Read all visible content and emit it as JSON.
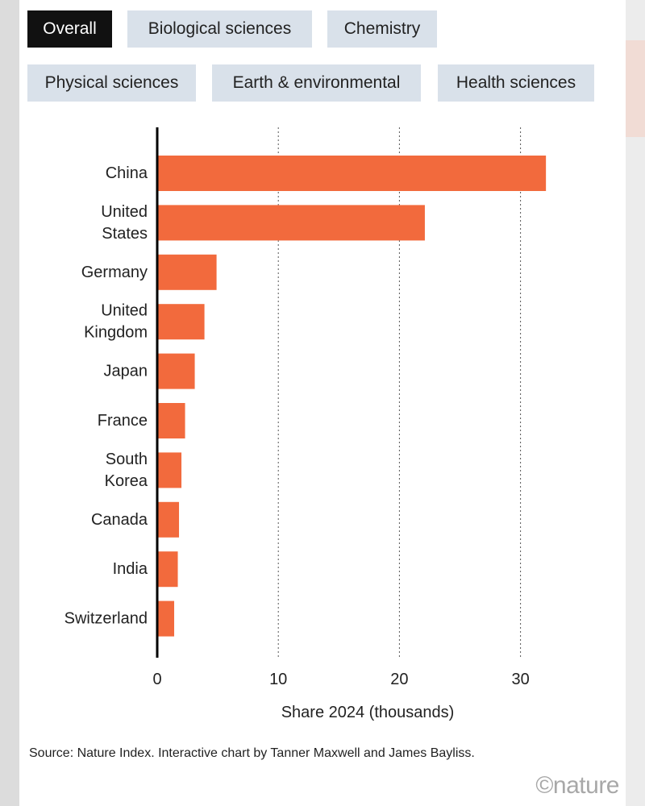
{
  "tabs": [
    {
      "label": "Overall",
      "active": true
    },
    {
      "label": "Biological sciences",
      "active": false
    },
    {
      "label": "Chemistry",
      "active": false
    },
    {
      "label": "Physical sciences",
      "active": false
    },
    {
      "label": "Earth & environmental",
      "active": false
    },
    {
      "label": "Health sciences",
      "active": false
    }
  ],
  "chart_data": {
    "type": "bar",
    "orientation": "horizontal",
    "categories": [
      "China",
      "United States",
      "Germany",
      "United Kingdom",
      "Japan",
      "France",
      "South Korea",
      "Canada",
      "India",
      "Switzerland"
    ],
    "category_lines": [
      [
        "China"
      ],
      [
        "United",
        "States"
      ],
      [
        "Germany"
      ],
      [
        "United",
        "Kingdom"
      ],
      [
        "Japan"
      ],
      [
        "France"
      ],
      [
        "South",
        "Korea"
      ],
      [
        "Canada"
      ],
      [
        "India"
      ],
      [
        "Switzerland"
      ]
    ],
    "values": [
      32.1,
      22.1,
      4.9,
      3.9,
      3.1,
      2.3,
      2.0,
      1.8,
      1.7,
      1.4
    ],
    "xlabel": "Share 2024 (thousands)",
    "xlim": [
      0,
      33
    ],
    "xticks": [
      0,
      10,
      20,
      30
    ],
    "grid": "vertical dotted",
    "bar_color": "#f26a3d"
  },
  "source": "Source: Nature Index. Interactive chart by Tanner Maxwell and James Bayliss.",
  "logo_text": "©nature"
}
